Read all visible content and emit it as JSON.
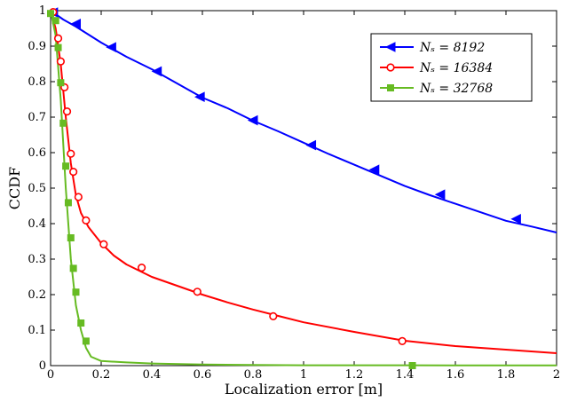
{
  "chart_data": {
    "type": "line",
    "title": "",
    "xlabel": "Localization error [m]",
    "ylabel": "CCDF",
    "xlim": [
      0,
      2
    ],
    "ylim": [
      0,
      1
    ],
    "xticks": [
      0,
      0.2,
      0.4,
      0.6,
      0.8,
      1,
      1.2,
      1.4,
      1.6,
      1.8,
      2
    ],
    "xtick_labels": [
      "0",
      "0.2",
      "0.4",
      "0.6",
      "0.8",
      "1",
      "1.2",
      "1.4",
      "1.6",
      "1.8",
      "2"
    ],
    "yticks": [
      0,
      0.1,
      0.2,
      0.3,
      0.4,
      0.5,
      0.6,
      0.7,
      0.8,
      0.9,
      1
    ],
    "ytick_labels": [
      "0",
      "0.1",
      "0.2",
      "0.3",
      "0.4",
      "0.5",
      "0.6",
      "0.7",
      "0.8",
      "0.9",
      "1"
    ],
    "grid": false,
    "legend_position": "top-right",
    "series": [
      {
        "name": "N_s = 8192",
        "legend_label": "Nₛ = 8192",
        "color": "#0000ff",
        "marker": "triangle-left",
        "line_x": [
          0,
          0.05,
          0.1,
          0.2,
          0.3,
          0.4,
          0.5,
          0.6,
          0.7,
          0.8,
          0.9,
          1.0,
          1.1,
          1.2,
          1.3,
          1.4,
          1.5,
          1.6,
          1.7,
          1.8,
          1.9,
          2.0
        ],
        "line_y": [
          1.0,
          0.975,
          0.955,
          0.91,
          0.87,
          0.835,
          0.795,
          0.755,
          0.725,
          0.69,
          0.66,
          0.628,
          0.596,
          0.566,
          0.536,
          0.506,
          0.48,
          0.456,
          0.432,
          0.408,
          0.392,
          0.375
        ],
        "marker_x": [
          0.01,
          0.1,
          0.24,
          0.42,
          0.59,
          0.8,
          1.03,
          1.28,
          1.54,
          1.84
        ],
        "marker_y": [
          0.995,
          0.963,
          0.897,
          0.829,
          0.757,
          0.691,
          0.621,
          0.552,
          0.482,
          0.413
        ]
      },
      {
        "name": "N_s = 16384",
        "legend_label": "Nₛ = 16384",
        "color": "#ff0000",
        "marker": "circle",
        "line_x": [
          0,
          0.02,
          0.04,
          0.06,
          0.08,
          0.1,
          0.12,
          0.15,
          0.2,
          0.25,
          0.3,
          0.4,
          0.5,
          0.6,
          0.7,
          0.8,
          0.9,
          1.0,
          1.2,
          1.4,
          1.6,
          1.8,
          2.0
        ],
        "line_y": [
          1.0,
          0.95,
          0.85,
          0.7,
          0.57,
          0.48,
          0.43,
          0.39,
          0.345,
          0.31,
          0.285,
          0.25,
          0.225,
          0.2,
          0.178,
          0.158,
          0.14,
          0.122,
          0.095,
          0.07,
          0.055,
          0.045,
          0.035
        ],
        "marker_x": [
          0.01,
          0.03,
          0.04,
          0.055,
          0.065,
          0.08,
          0.09,
          0.11,
          0.14,
          0.21,
          0.36,
          0.58,
          0.88,
          1.39
        ],
        "marker_y": [
          0.996,
          0.922,
          0.857,
          0.784,
          0.716,
          0.597,
          0.546,
          0.475,
          0.409,
          0.342,
          0.276,
          0.208,
          0.139,
          0.069
        ]
      },
      {
        "name": "N_s = 32768",
        "legend_label": "Nₛ = 32768",
        "color": "#66bb22",
        "marker": "square",
        "line_x": [
          0,
          0.02,
          0.04,
          0.06,
          0.08,
          0.1,
          0.12,
          0.14,
          0.16,
          0.2,
          0.3,
          0.4,
          0.6,
          0.8,
          1.0,
          1.4,
          2.0
        ],
        "line_y": [
          1.0,
          0.93,
          0.75,
          0.5,
          0.3,
          0.17,
          0.1,
          0.05,
          0.025,
          0.013,
          0.009,
          0.006,
          0.003,
          0.002,
          0.001,
          0.0008,
          0.0005
        ],
        "marker_x": [
          0.0,
          0.02,
          0.03,
          0.04,
          0.05,
          0.06,
          0.07,
          0.08,
          0.09,
          0.1,
          0.12,
          0.14,
          1.43
        ],
        "marker_y": [
          0.992,
          0.972,
          0.896,
          0.797,
          0.683,
          0.562,
          0.459,
          0.36,
          0.274,
          0.207,
          0.12,
          0.069,
          0.0
        ]
      }
    ]
  }
}
